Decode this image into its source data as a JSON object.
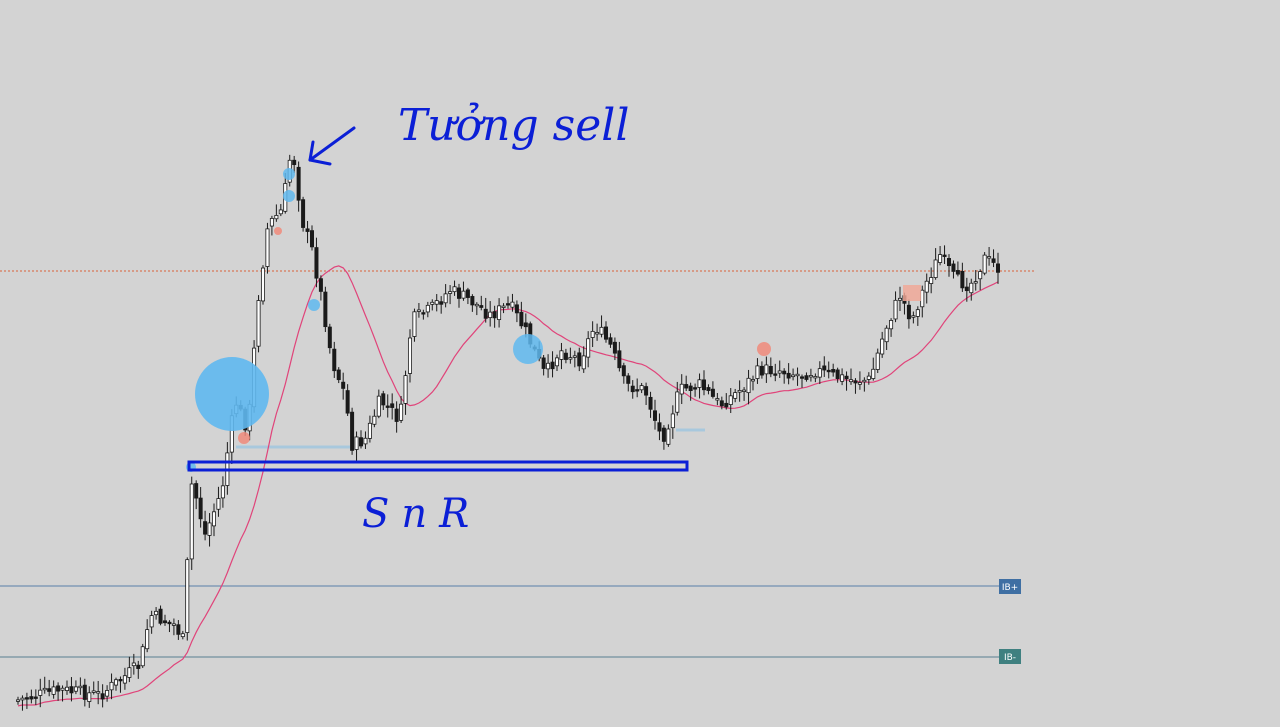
{
  "chart_data": {
    "type": "candlestick",
    "candle_count": 221,
    "ma_series": "moving average (pink line)",
    "annotations": {
      "handwritten_top": "Tưởng sell",
      "handwritten_bottom": "SnR"
    },
    "levels": {
      "ib_plus": "IB+",
      "ib_minus": "IB-"
    },
    "colors": {
      "background": "#d3d3d3",
      "candle": "#1a1a1a",
      "ma": "#e0447a",
      "annotation": "#0b1fd6",
      "level_line": "#5a7fa8",
      "ib_plus_bg": "#3f6fa3",
      "ib_minus_bg": "#3f8080",
      "dotted_line": "#d9623a",
      "bubble": "#5fb8ef",
      "bubble_pink": "#f08a7a"
    }
  }
}
